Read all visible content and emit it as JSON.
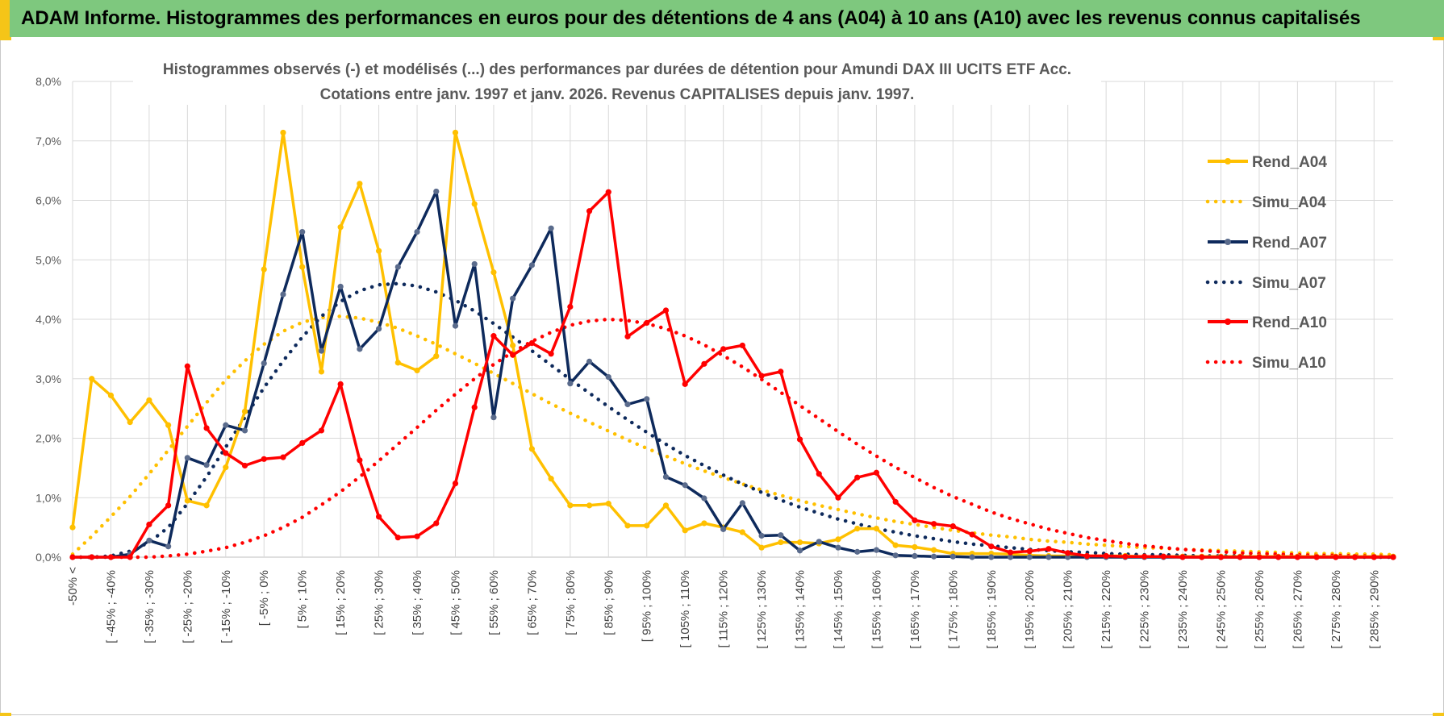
{
  "header": {
    "title": "ADAM Informe. Histogrammes des performances en euros pour des détentions de 4 ans (A04) à 10 ans (A10) avec les revenus connus capitalisés"
  },
  "colors": {
    "a04": "#ffc000",
    "a07": "#0e2a5c",
    "a10": "#ff0000",
    "header_bg": "#7ec87e",
    "accent": "#f5c518"
  },
  "chart_data": {
    "type": "line",
    "title_line1": "Histogrammes observés (-) et modélisés (...) des performances par durées de détention pour Amundi DAX III UCITS ETF Acc.",
    "title_line2": "Cotations entre janv. 1997 et janv. 2026. Revenus CAPITALISES depuis janv. 1997.",
    "ylim": [
      0,
      8
    ],
    "y_ticks": [
      "0,0%",
      "1,0%",
      "2,0%",
      "3,0%",
      "4,0%",
      "5,0%",
      "6,0%",
      "7,0%",
      "8,0%"
    ],
    "x_labels": [
      "-50% <",
      "[ -45% ; -40%",
      "[ -35% ; -30%",
      "[ -25% ; -20%",
      "[ -15% ; -10%",
      "[ -5% ; 0%",
      "[ 5% ; 10%",
      "[ 15% ; 20%",
      "[ 25% ; 30%",
      "[ 35% ; 40%",
      "[ 45% ; 50%",
      "[ 55% ; 60%",
      "[ 65% ; 70%",
      "[ 75% ; 80%",
      "[ 85% ; 90%",
      "[ 95% ; 100%",
      "[ 105% ; 110%",
      "[ 115% ; 120%",
      "[ 125% ; 130%",
      "[ 135% ; 140%",
      "[ 145% ; 150%",
      "[ 155% ; 160%",
      "[ 165% ; 170%",
      "[ 175% ; 180%",
      "[ 185% ; 190%",
      "[ 195% ; 200%",
      "[ 205% ; 210%",
      "[ 215% ; 220%",
      "[ 225% ; 230%",
      "[ 235% ; 240%",
      "[ 245% ; 250%",
      "[ 255% ; 260%",
      "[ 265% ; 270%",
      "[ 275% ; 280%",
      "[ 285% ; 290%"
    ],
    "n_points": 70,
    "series": [
      {
        "name": "Rend_A04",
        "style": "solid",
        "color": "#ffc000",
        "values": [
          0.5,
          3.0,
          2.72,
          2.27,
          2.64,
          2.22,
          0.95,
          0.87,
          1.51,
          2.45,
          4.84,
          7.14,
          4.88,
          3.12,
          5.55,
          6.28,
          5.15,
          3.27,
          3.14,
          3.38,
          7.14,
          5.94,
          4.79,
          3.56,
          1.82,
          1.32,
          0.87,
          0.87,
          0.9,
          0.53,
          0.53,
          0.87,
          0.45,
          0.57,
          0.5,
          0.42,
          0.16,
          0.25,
          0.25,
          0.23,
          0.3,
          0.48,
          0.48,
          0.2,
          0.17,
          0.12,
          0.06,
          0.06,
          0.06,
          0.05,
          0.03,
          0.02,
          0.02,
          0.02,
          0.02,
          0.02,
          0.01,
          0.01,
          0.01,
          0.01,
          0.01,
          0.01,
          0.01,
          0.01,
          0.01,
          0.01,
          0.01,
          0.01,
          0.01,
          0.01
        ]
      },
      {
        "name": "Simu_A04",
        "style": "dotted",
        "color": "#ffc000",
        "values": [
          0.05,
          0.35,
          0.68,
          1.02,
          1.4,
          1.8,
          2.2,
          2.6,
          2.98,
          3.3,
          3.58,
          3.8,
          3.95,
          4.03,
          4.05,
          4.02,
          3.95,
          3.85,
          3.72,
          3.58,
          3.42,
          3.26,
          3.09,
          2.92,
          2.75,
          2.58,
          2.42,
          2.27,
          2.12,
          1.97,
          1.83,
          1.7,
          1.57,
          1.45,
          1.34,
          1.23,
          1.13,
          1.04,
          0.95,
          0.87,
          0.8,
          0.73,
          0.66,
          0.6,
          0.55,
          0.5,
          0.45,
          0.41,
          0.37,
          0.34,
          0.3,
          0.27,
          0.25,
          0.22,
          0.2,
          0.18,
          0.16,
          0.15,
          0.13,
          0.12,
          0.11,
          0.1,
          0.09,
          0.08,
          0.07,
          0.06,
          0.06,
          0.05,
          0.05,
          0.04
        ]
      },
      {
        "name": "Rend_A07",
        "style": "solid",
        "color": "#0e2a5c",
        "values": [
          0.0,
          0.0,
          0.0,
          0.05,
          0.28,
          0.18,
          1.67,
          1.55,
          2.22,
          2.13,
          3.26,
          4.42,
          5.47,
          3.47,
          4.55,
          3.5,
          3.84,
          4.88,
          5.47,
          6.15,
          3.89,
          4.93,
          2.35,
          4.35,
          4.91,
          5.53,
          2.92,
          3.29,
          3.03,
          2.57,
          2.66,
          1.35,
          1.21,
          0.99,
          0.47,
          0.91,
          0.36,
          0.37,
          0.11,
          0.26,
          0.16,
          0.09,
          0.12,
          0.03,
          0.02,
          0.01,
          0.01,
          0.0,
          0.0,
          0.0,
          0.0,
          0.0,
          0.0,
          0.0,
          0.0,
          0.0,
          0.0,
          0.0,
          0.0,
          0.0,
          0.0,
          0.0,
          0.0,
          0.0,
          0.0,
          0.0,
          0.0,
          0.0,
          0.0,
          0.0
        ]
      },
      {
        "name": "Simu_A07",
        "style": "dotted",
        "color": "#0e2a5c",
        "values": [
          0.0,
          0.0,
          0.02,
          0.1,
          0.25,
          0.5,
          0.9,
          1.35,
          1.85,
          2.35,
          2.85,
          3.3,
          3.7,
          4.05,
          4.3,
          4.48,
          4.58,
          4.6,
          4.56,
          4.46,
          4.32,
          4.14,
          3.93,
          3.7,
          3.47,
          3.23,
          2.99,
          2.76,
          2.53,
          2.31,
          2.1,
          1.9,
          1.71,
          1.54,
          1.38,
          1.23,
          1.09,
          0.96,
          0.84,
          0.74,
          0.64,
          0.56,
          0.48,
          0.42,
          0.36,
          0.31,
          0.26,
          0.22,
          0.19,
          0.16,
          0.13,
          0.11,
          0.09,
          0.08,
          0.06,
          0.05,
          0.04,
          0.04,
          0.03,
          0.02,
          0.02,
          0.02,
          0.01,
          0.01,
          0.01,
          0.01,
          0.01,
          0.0,
          0.0,
          0.0
        ]
      },
      {
        "name": "Rend_A10",
        "style": "solid",
        "color": "#ff0000",
        "values": [
          0.0,
          0.0,
          0.0,
          0.0,
          0.55,
          0.87,
          3.21,
          2.17,
          1.75,
          1.54,
          1.65,
          1.68,
          1.92,
          2.13,
          2.91,
          1.63,
          0.68,
          0.33,
          0.35,
          0.57,
          1.24,
          2.52,
          3.72,
          3.4,
          3.6,
          3.42,
          4.21,
          5.82,
          6.14,
          3.71,
          3.94,
          4.15,
          2.91,
          3.25,
          3.5,
          3.56,
          3.05,
          3.12,
          1.98,
          1.4,
          1.0,
          1.34,
          1.42,
          0.93,
          0.62,
          0.56,
          0.52,
          0.38,
          0.18,
          0.08,
          0.1,
          0.14,
          0.07,
          0.02,
          0.02,
          0.01,
          0.01,
          0.01,
          0.0,
          0.0,
          0.0,
          0.0,
          0.0,
          0.0,
          0.0,
          0.0,
          0.0,
          0.0,
          0.0,
          0.0
        ]
      },
      {
        "name": "Simu_A10",
        "style": "dotted",
        "color": "#ff0000",
        "values": [
          0.0,
          0.0,
          0.0,
          0.0,
          0.0,
          0.02,
          0.05,
          0.1,
          0.16,
          0.25,
          0.36,
          0.5,
          0.67,
          0.88,
          1.1,
          1.35,
          1.62,
          1.9,
          2.18,
          2.47,
          2.74,
          3.0,
          3.24,
          3.45,
          3.63,
          3.78,
          3.9,
          3.97,
          4.0,
          3.98,
          3.93,
          3.84,
          3.72,
          3.57,
          3.39,
          3.2,
          2.99,
          2.77,
          2.55,
          2.33,
          2.11,
          1.9,
          1.7,
          1.51,
          1.34,
          1.17,
          1.02,
          0.89,
          0.76,
          0.65,
          0.56,
          0.47,
          0.4,
          0.33,
          0.28,
          0.23,
          0.19,
          0.16,
          0.13,
          0.11,
          0.09,
          0.07,
          0.06,
          0.05,
          0.04,
          0.03,
          0.03,
          0.02,
          0.02,
          0.01
        ]
      }
    ]
  }
}
